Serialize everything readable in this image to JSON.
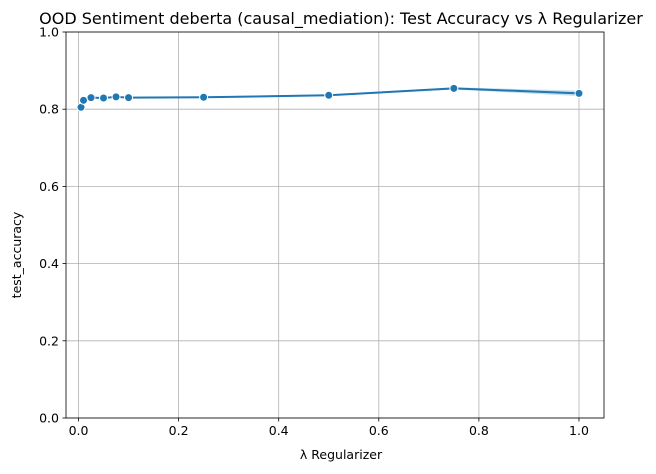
{
  "chart_data": {
    "type": "line",
    "title": "OOD Sentiment deberta (causal_mediation): Test Accuracy vs λ Regularizer",
    "xlabel": "λ Regularizer",
    "ylabel": "test_accuracy",
    "xlim": [
      -0.025,
      1.05
    ],
    "ylim": [
      0.0,
      1.0
    ],
    "x_ticks": [
      0.0,
      0.2,
      0.4,
      0.6,
      0.8,
      1.0
    ],
    "x_tick_labels": [
      "0.0",
      "0.2",
      "0.4",
      "0.6",
      "0.8",
      "1.0"
    ],
    "y_ticks": [
      0.0,
      0.2,
      0.4,
      0.6,
      0.8,
      1.0
    ],
    "y_tick_labels": [
      "0.0",
      "0.2",
      "0.4",
      "0.6",
      "0.8",
      "1.0"
    ],
    "grid": true,
    "legend": false,
    "series": [
      {
        "color": "#1f77b4",
        "marker": "circle",
        "x": [
          0.005,
          0.01,
          0.025,
          0.05,
          0.075,
          0.1,
          0.25,
          0.5,
          0.75,
          1.0
        ],
        "y": [
          0.805,
          0.823,
          0.83,
          0.829,
          0.832,
          0.83,
          0.831,
          0.836,
          0.854,
          0.841
        ],
        "band_upper": [
          0.807,
          0.825,
          0.832,
          0.831,
          0.834,
          0.832,
          0.833,
          0.838,
          0.857,
          0.848
        ],
        "band_lower": [
          0.803,
          0.821,
          0.828,
          0.827,
          0.83,
          0.828,
          0.829,
          0.834,
          0.851,
          0.834
        ]
      }
    ]
  }
}
